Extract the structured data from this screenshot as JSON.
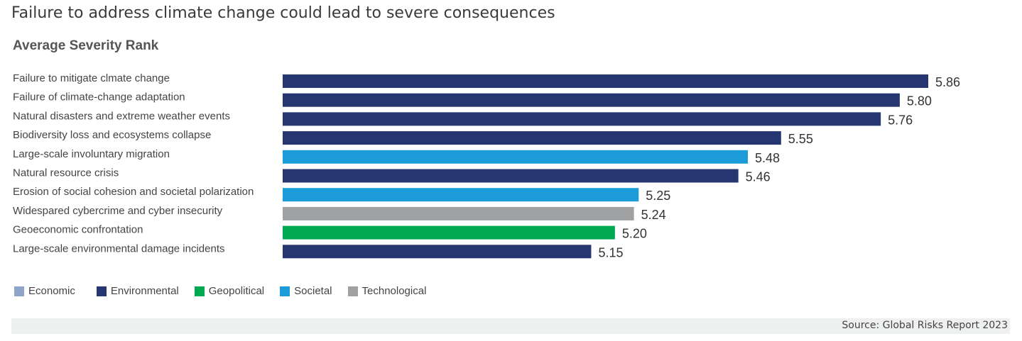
{
  "headline": "Failure to address climate change could lead to severe consequences",
  "source": "Source: Global Risks Report 2023",
  "colors": {
    "Economic": "#8ea5c8",
    "Environmental": "#253670",
    "Geopolitical": "#00a84f",
    "Societal": "#1b9cd8",
    "Technological": "#a0a1a3"
  },
  "legend": [
    "Economic",
    "Environmental",
    "Geopolitical",
    "Societal",
    "Technological"
  ],
  "chart_data": {
    "type": "bar",
    "orientation": "horizontal",
    "title": "Average Severity Rank",
    "categories": [
      "Failure to mitigate clmate change",
      "Failure of climate-change adaptation",
      "Natural disasters and extreme weather events",
      "Biodiversity loss and ecosystems collapse",
      "Large-scale involuntary migration",
      "Natural resource crisis",
      "Erosion of social cohesion and societal polarization",
      "Widespared cybercrime and cyber insecurity",
      "Geoeconomic confrontation",
      "Large-scale environmental damage incidents"
    ],
    "values": [
      5.86,
      5.8,
      5.76,
      5.55,
      5.48,
      5.46,
      5.25,
      5.24,
      5.2,
      5.15
    ],
    "value_labels": [
      "5.86",
      "5.80",
      "5.76",
      "5.55",
      "5.48",
      "5.46",
      "5.25",
      "5.24",
      "5.20",
      "5.15"
    ],
    "groups": [
      "Environmental",
      "Environmental",
      "Environmental",
      "Environmental",
      "Societal",
      "Environmental",
      "Societal",
      "Technological",
      "Geopolitical",
      "Environmental"
    ],
    "xlim": [
      4.5,
      5.86
    ],
    "grid": false,
    "legend_position": "bottom-left"
  }
}
